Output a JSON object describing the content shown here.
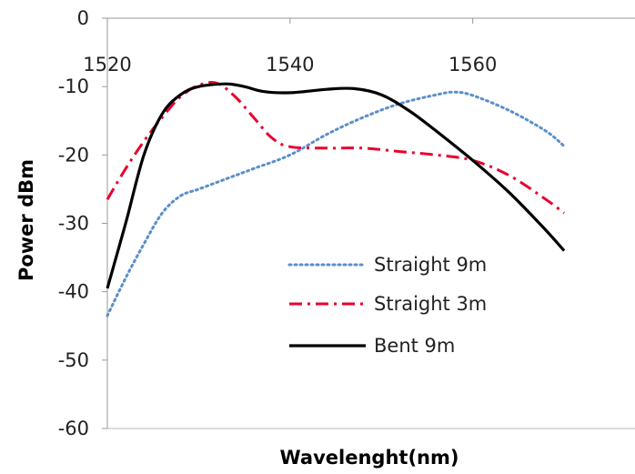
{
  "chart_data": {
    "type": "line",
    "xlabel": "Wavelenght(nm)",
    "ylabel": "Power dBm",
    "xlim": [
      1520,
      1570
    ],
    "ylim": [
      -60,
      0
    ],
    "x_ticks": [
      "1520",
      "1540",
      "1560"
    ],
    "x_tick_values": [
      1520,
      1540,
      1560
    ],
    "y_ticks": [
      "0",
      "-10",
      "-20",
      "-30",
      "-40",
      "-50",
      "-60"
    ],
    "y_tick_values": [
      0,
      -10,
      -20,
      -30,
      -40,
      -50,
      -60
    ],
    "x_axis_position": "top",
    "grid": false,
    "legend_position": "lower-center",
    "series": [
      {
        "name": "Straight 9m",
        "color": "#5b8fc9",
        "style": "dotted",
        "points": [
          [
            1520,
            -43.5
          ],
          [
            1522,
            -38
          ],
          [
            1524,
            -33
          ],
          [
            1526,
            -28.5
          ],
          [
            1528,
            -26
          ],
          [
            1530,
            -25
          ],
          [
            1533,
            -23.5
          ],
          [
            1536,
            -22
          ],
          [
            1540,
            -20
          ],
          [
            1544,
            -17
          ],
          [
            1548,
            -14.5
          ],
          [
            1552,
            -12.5
          ],
          [
            1556,
            -11.2
          ],
          [
            1558,
            -10.8
          ],
          [
            1560,
            -11.3
          ],
          [
            1564,
            -13.5
          ],
          [
            1568,
            -16.5
          ],
          [
            1570,
            -18.7
          ]
        ]
      },
      {
        "name": "Straight 3m",
        "color": "#e8002d",
        "style": "dash-dot",
        "points": [
          [
            1520,
            -26.5
          ],
          [
            1522,
            -22
          ],
          [
            1524,
            -18
          ],
          [
            1526,
            -14.5
          ],
          [
            1528,
            -11.5
          ],
          [
            1530,
            -9.8
          ],
          [
            1532,
            -9.5
          ],
          [
            1534,
            -11.5
          ],
          [
            1536,
            -14.5
          ],
          [
            1538,
            -17.5
          ],
          [
            1540,
            -18.8
          ],
          [
            1544,
            -19
          ],
          [
            1548,
            -19
          ],
          [
            1552,
            -19.5
          ],
          [
            1556,
            -20
          ],
          [
            1560,
            -20.8
          ],
          [
            1564,
            -23
          ],
          [
            1568,
            -26.5
          ],
          [
            1570,
            -28.5
          ]
        ]
      },
      {
        "name": "Bent 9m",
        "color": "#000000",
        "style": "solid",
        "points": [
          [
            1520,
            -39.5
          ],
          [
            1522,
            -30
          ],
          [
            1524,
            -20
          ],
          [
            1526,
            -14
          ],
          [
            1528,
            -11.2
          ],
          [
            1530,
            -10
          ],
          [
            1533,
            -9.6
          ],
          [
            1535,
            -10
          ],
          [
            1537,
            -10.7
          ],
          [
            1540,
            -10.9
          ],
          [
            1544,
            -10.4
          ],
          [
            1547,
            -10.3
          ],
          [
            1550,
            -11.2
          ],
          [
            1553,
            -13.5
          ],
          [
            1556,
            -16.5
          ],
          [
            1560,
            -20.8
          ],
          [
            1564,
            -25.5
          ],
          [
            1568,
            -31
          ],
          [
            1570,
            -34
          ]
        ]
      }
    ]
  }
}
